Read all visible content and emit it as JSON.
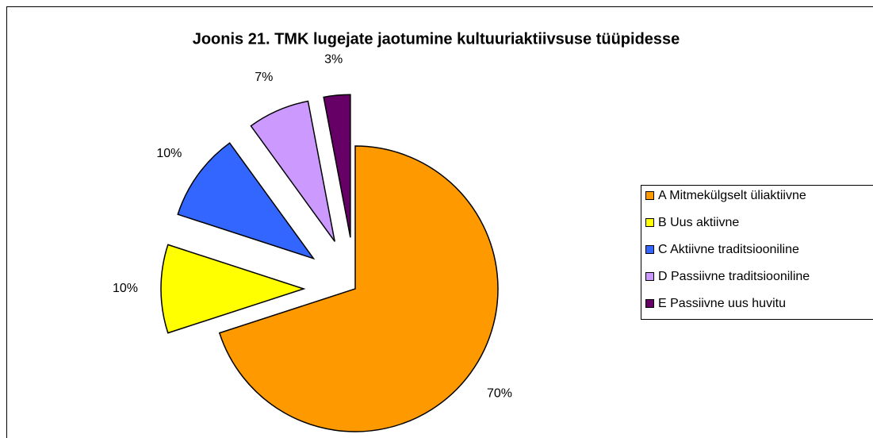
{
  "chart_data": {
    "type": "pie",
    "title": "Joonis 21. TMK lugejate jaotumine kultuuriaktiivsuse tüüpidesse",
    "categories": [
      "A Mitmekülgselt üliaktiivne",
      "B Uus aktiivne",
      "C Aktiivne traditsiooniline",
      "D Passiivne traditsiooniline",
      "E Passiivne uus huvitu"
    ],
    "values": [
      70,
      10,
      10,
      7,
      3
    ],
    "value_labels": [
      "70%",
      "10%",
      "10%",
      "7%",
      "3%"
    ],
    "colors": [
      "#ff9900",
      "#ffff00",
      "#3366ff",
      "#cc99ff",
      "#660066"
    ],
    "legend": "right"
  }
}
